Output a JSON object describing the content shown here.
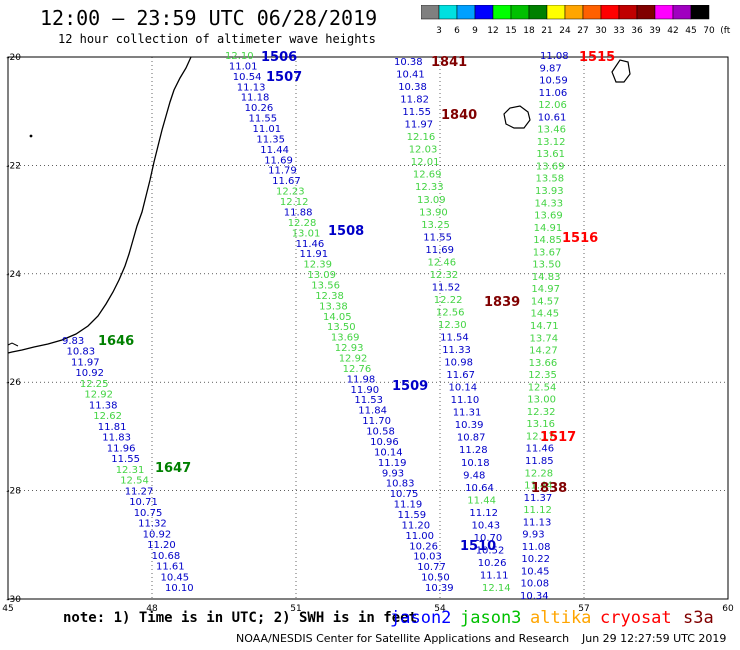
{
  "header": {
    "title": "12:00 – 23:59 UTC 06/28/2019",
    "subtitle": "12 hour collection of altimeter wave heights"
  },
  "colorbar": {
    "labels": [
      "3",
      "6",
      "9",
      "12",
      "15",
      "18",
      "21",
      "24",
      "27",
      "30",
      "33",
      "36",
      "39",
      "42",
      "45",
      "70",
      "(ft)"
    ],
    "colors": [
      "#808080",
      "#00e0e0",
      "#00a0ff",
      "#0000ff",
      "#00ff00",
      "#00c000",
      "#008000",
      "#ffff00",
      "#ffa500",
      "#ff6000",
      "#ff0000",
      "#c00000",
      "#800000",
      "#ff00ff",
      "#a000c0",
      "#000000"
    ]
  },
  "map": {
    "x_ticks": [
      "45",
      "48",
      "51",
      "54",
      "57",
      "60"
    ],
    "y_ticks": [
      "-20",
      "-22",
      "-24",
      "-26",
      "-28",
      "-30"
    ]
  },
  "passes": [
    {
      "name": "1506",
      "sat": "jason2"
    },
    {
      "name": "1507",
      "sat": "jason2"
    },
    {
      "name": "1508",
      "sat": "jason2"
    },
    {
      "name": "1509",
      "sat": "jason2"
    },
    {
      "name": "1510",
      "sat": "jason2"
    },
    {
      "name": "1646",
      "sat": "jason3"
    },
    {
      "name": "1647",
      "sat": "jason3"
    },
    {
      "name": "1515",
      "sat": "cryosat"
    },
    {
      "name": "1516",
      "sat": "cryosat"
    },
    {
      "name": "1517",
      "sat": "cryosat"
    },
    {
      "name": "1838",
      "sat": "s3a"
    },
    {
      "name": "1839",
      "sat": "s3a"
    },
    {
      "name": "1840",
      "sat": "s3a"
    },
    {
      "name": "1841",
      "sat": "s3a"
    }
  ],
  "tracks": {
    "t1": [
      {
        "v": "9.83",
        "c": "b"
      },
      {
        "v": "10.83",
        "c": "b"
      },
      {
        "v": "11.97",
        "c": "b"
      },
      {
        "v": "10.92",
        "c": "b"
      },
      {
        "v": "12.25",
        "c": "g"
      },
      {
        "v": "12.92",
        "c": "g"
      },
      {
        "v": "11.38",
        "c": "b"
      },
      {
        "v": "12.62",
        "c": "g"
      },
      {
        "v": "11.81",
        "c": "b"
      },
      {
        "v": "11.83",
        "c": "b"
      },
      {
        "v": "11.96",
        "c": "b"
      },
      {
        "v": "11.55",
        "c": "b"
      },
      {
        "v": "12.31",
        "c": "g"
      },
      {
        "v": "12.54",
        "c": "g"
      },
      {
        "v": "11.27",
        "c": "b"
      },
      {
        "v": "10.71",
        "c": "b"
      },
      {
        "v": "10.75",
        "c": "b"
      },
      {
        "v": "11.32",
        "c": "b"
      },
      {
        "v": "10.92",
        "c": "b"
      },
      {
        "v": "11.20",
        "c": "b"
      },
      {
        "v": "10.68",
        "c": "b"
      },
      {
        "v": "11.61",
        "c": "b"
      },
      {
        "v": "10.45",
        "c": "b"
      },
      {
        "v": "10.10",
        "c": "b"
      }
    ],
    "t2": [
      {
        "v": "12.10",
        "c": "g"
      },
      {
        "v": "11.01",
        "c": "b"
      },
      {
        "v": "10.54",
        "c": "b"
      },
      {
        "v": "11.13",
        "c": "b"
      },
      {
        "v": "11.18",
        "c": "b"
      },
      {
        "v": "10.26",
        "c": "b"
      },
      {
        "v": "11.55",
        "c": "b"
      },
      {
        "v": "11.01",
        "c": "b"
      },
      {
        "v": "11.35",
        "c": "b"
      },
      {
        "v": "11.44",
        "c": "b"
      },
      {
        "v": "11.69",
        "c": "b"
      },
      {
        "v": "11.79",
        "c": "b"
      },
      {
        "v": "11.67",
        "c": "b"
      },
      {
        "v": "12.23",
        "c": "g"
      },
      {
        "v": "12.12",
        "c": "g"
      },
      {
        "v": "11.88",
        "c": "b"
      },
      {
        "v": "12.28",
        "c": "g"
      },
      {
        "v": "13.01",
        "c": "g"
      },
      {
        "v": "11.46",
        "c": "b"
      },
      {
        "v": "11.91",
        "c": "b"
      },
      {
        "v": "12.39",
        "c": "g"
      },
      {
        "v": "13.09",
        "c": "g"
      },
      {
        "v": "13.56",
        "c": "g"
      },
      {
        "v": "12.38",
        "c": "g"
      },
      {
        "v": "13.38",
        "c": "g"
      },
      {
        "v": "14.05",
        "c": "g"
      },
      {
        "v": "13.50",
        "c": "g"
      },
      {
        "v": "13.69",
        "c": "g"
      },
      {
        "v": "12.93",
        "c": "g"
      },
      {
        "v": "12.92",
        "c": "g"
      },
      {
        "v": "12.76",
        "c": "g"
      },
      {
        "v": "11.98",
        "c": "b"
      },
      {
        "v": "11.90",
        "c": "b"
      },
      {
        "v": "11.53",
        "c": "b"
      },
      {
        "v": "11.84",
        "c": "b"
      },
      {
        "v": "11.70",
        "c": "b"
      },
      {
        "v": "10.58",
        "c": "b"
      },
      {
        "v": "10.96",
        "c": "b"
      },
      {
        "v": "10.14",
        "c": "b"
      },
      {
        "v": "11.19",
        "c": "b"
      },
      {
        "v": "9.93",
        "c": "b"
      },
      {
        "v": "10.83",
        "c": "b"
      },
      {
        "v": "10.75",
        "c": "b"
      },
      {
        "v": "11.19",
        "c": "b"
      },
      {
        "v": "11.59",
        "c": "b"
      },
      {
        "v": "11.20",
        "c": "b"
      },
      {
        "v": "11.00",
        "c": "b"
      },
      {
        "v": "10.26",
        "c": "b"
      },
      {
        "v": "10.03",
        "c": "b"
      },
      {
        "v": "10.77",
        "c": "b"
      },
      {
        "v": "10.50",
        "c": "b"
      },
      {
        "v": "10.39",
        "c": "b"
      }
    ],
    "t3": [
      {
        "v": "10.38",
        "c": "b"
      },
      {
        "v": "10.41",
        "c": "b"
      },
      {
        "v": "10.38",
        "c": "b"
      },
      {
        "v": "11.82",
        "c": "b"
      },
      {
        "v": "11.55",
        "c": "b"
      },
      {
        "v": "11.97",
        "c": "b"
      },
      {
        "v": "12.16",
        "c": "g"
      },
      {
        "v": "12.03",
        "c": "g"
      },
      {
        "v": "12.01",
        "c": "g"
      },
      {
        "v": "12.69",
        "c": "g"
      },
      {
        "v": "12.33",
        "c": "g"
      },
      {
        "v": "13.09",
        "c": "g"
      },
      {
        "v": "13.90",
        "c": "g"
      },
      {
        "v": "13.25",
        "c": "g"
      },
      {
        "v": "11.55",
        "c": "b"
      },
      {
        "v": "11.69",
        "c": "b"
      },
      {
        "v": "12.46",
        "c": "g"
      },
      {
        "v": "12.32",
        "c": "g"
      },
      {
        "v": "11.52",
        "c": "b"
      },
      {
        "v": "12.22",
        "c": "g"
      },
      {
        "v": "12.56",
        "c": "g"
      },
      {
        "v": "12.30",
        "c": "g"
      },
      {
        "v": "11.54",
        "c": "b"
      },
      {
        "v": "11.33",
        "c": "b"
      },
      {
        "v": "10.98",
        "c": "b"
      },
      {
        "v": "11.67",
        "c": "b"
      },
      {
        "v": "10.14",
        "c": "b"
      },
      {
        "v": "11.10",
        "c": "b"
      },
      {
        "v": "11.31",
        "c": "b"
      },
      {
        "v": "10.39",
        "c": "b"
      },
      {
        "v": "10.87",
        "c": "b"
      },
      {
        "v": "11.28",
        "c": "b"
      },
      {
        "v": "10.18",
        "c": "b"
      },
      {
        "v": "9.48",
        "c": "b"
      },
      {
        "v": "10.64",
        "c": "b"
      },
      {
        "v": "11.44",
        "c": "g"
      },
      {
        "v": "11.12",
        "c": "b"
      },
      {
        "v": "10.43",
        "c": "b"
      },
      {
        "v": "10.70",
        "c": "b"
      },
      {
        "v": "10.52",
        "c": "b"
      },
      {
        "v": "10.26",
        "c": "b"
      },
      {
        "v": "11.11",
        "c": "b"
      },
      {
        "v": "12.14",
        "c": "g"
      }
    ],
    "t4": [
      {
        "v": "11.08",
        "c": "b"
      },
      {
        "v": "9.87",
        "c": "b"
      },
      {
        "v": "10.59",
        "c": "b"
      },
      {
        "v": "11.06",
        "c": "b"
      },
      {
        "v": "12.06",
        "c": "g"
      },
      {
        "v": "10.61",
        "c": "b"
      },
      {
        "v": "13.46",
        "c": "g"
      },
      {
        "v": "13.12",
        "c": "g"
      },
      {
        "v": "13.61",
        "c": "g"
      },
      {
        "v": "13.69",
        "c": "g"
      },
      {
        "v": "13.58",
        "c": "g"
      },
      {
        "v": "13.93",
        "c": "g"
      },
      {
        "v": "14.33",
        "c": "g"
      },
      {
        "v": "13.69",
        "c": "g"
      },
      {
        "v": "14.91",
        "c": "g"
      },
      {
        "v": "14.85",
        "c": "g"
      },
      {
        "v": "13.67",
        "c": "g"
      },
      {
        "v": "13.50",
        "c": "g"
      },
      {
        "v": "14.83",
        "c": "g"
      },
      {
        "v": "14.97",
        "c": "g"
      },
      {
        "v": "14.57",
        "c": "g"
      },
      {
        "v": "14.45",
        "c": "g"
      },
      {
        "v": "14.71",
        "c": "g"
      },
      {
        "v": "13.74",
        "c": "g"
      },
      {
        "v": "14.27",
        "c": "g"
      },
      {
        "v": "13.66",
        "c": "g"
      },
      {
        "v": "12.35",
        "c": "g"
      },
      {
        "v": "12.54",
        "c": "g"
      },
      {
        "v": "13.00",
        "c": "g"
      },
      {
        "v": "12.32",
        "c": "g"
      },
      {
        "v": "13.16",
        "c": "g"
      },
      {
        "v": "12.17",
        "c": "g"
      },
      {
        "v": "11.46",
        "c": "b"
      },
      {
        "v": "11.85",
        "c": "b"
      },
      {
        "v": "12.28",
        "c": "g"
      },
      {
        "v": "11.44",
        "c": "g"
      },
      {
        "v": "11.37",
        "c": "b"
      },
      {
        "v": "11.12",
        "c": "g"
      },
      {
        "v": "11.13",
        "c": "b"
      },
      {
        "v": "9.93",
        "c": "b"
      },
      {
        "v": "11.08",
        "c": "b"
      },
      {
        "v": "10.22",
        "c": "b"
      },
      {
        "v": "10.45",
        "c": "b"
      },
      {
        "v": "10.08",
        "c": "b"
      },
      {
        "v": "10.34",
        "c": "b"
      }
    ]
  },
  "footer": {
    "note": "note: 1) Time is in UTC; 2) SWH is in feet",
    "legend": [
      {
        "label": "jason2",
        "color": "#0000ff"
      },
      {
        "label": "jason3",
        "color": "#00c000"
      },
      {
        "label": "altika",
        "color": "#ffa500"
      },
      {
        "label": "cryosat",
        "color": "#ff0000"
      },
      {
        "label": "s3a",
        "color": "#800000"
      }
    ],
    "credit": "NOAA/NESDIS Center for Satellite Applications and Research",
    "timestamp": "Jun 29 12:27:59 UTC 2019"
  }
}
